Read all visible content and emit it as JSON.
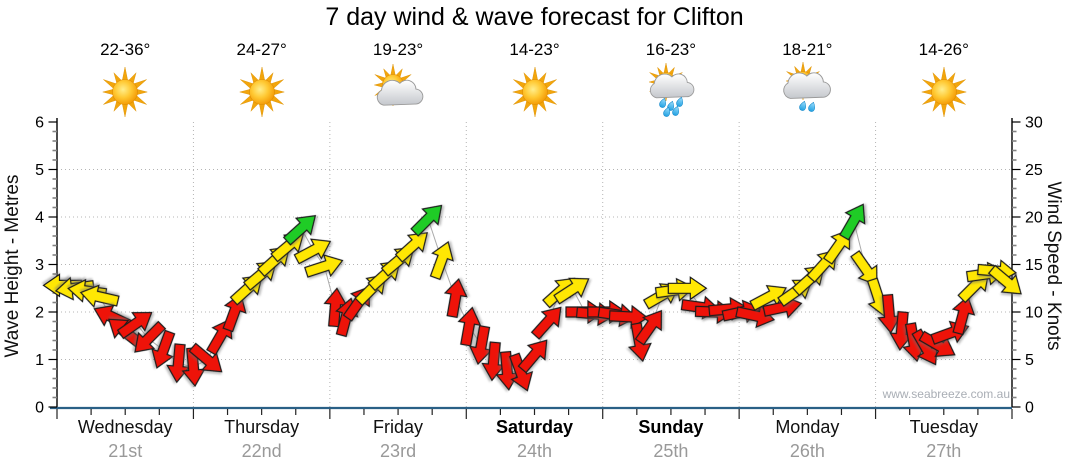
{
  "watermark": "www.seabreeze.com.au",
  "chart_data": {
    "type": "wind-arrow-series",
    "title": "7 day wind & wave forecast for Clifton",
    "days": [
      {
        "name": "Wednesday",
        "date": "21st",
        "temp": "22-36°",
        "icon": "sunny",
        "bold": false
      },
      {
        "name": "Thursday",
        "date": "22nd",
        "temp": "24-27°",
        "icon": "sunny",
        "bold": false
      },
      {
        "name": "Friday",
        "date": "23rd",
        "temp": "19-23°",
        "icon": "partly-cloudy",
        "bold": false
      },
      {
        "name": "Saturday",
        "date": "24th",
        "temp": "14-23°",
        "icon": "sunny",
        "bold": true
      },
      {
        "name": "Sunday",
        "date": "25th",
        "temp": "16-23°",
        "icon": "rain",
        "bold": true
      },
      {
        "name": "Monday",
        "date": "26th",
        "temp": "18-21°",
        "icon": "rain-light",
        "bold": false
      },
      {
        "name": "Tuesday",
        "date": "27th",
        "temp": "14-26°",
        "icon": "sunny",
        "bold": false
      }
    ],
    "left_axis": {
      "label": "Wave Height - Metres",
      "min": 0,
      "max": 6,
      "major_step": 1,
      "minor_step": 0.2,
      "gridlines": [
        1,
        2,
        3,
        4,
        5
      ]
    },
    "right_axis": {
      "label": "Wind Speed - Knots",
      "min": 0,
      "max": 30,
      "major_step": 5,
      "minor_step": 1
    },
    "colors": {
      "red": "#ee1309",
      "yellow": "#ffe703",
      "green": "#1fcc26"
    },
    "points_key": "t = day offset (0=Wed 00:00, 7=end Tue), knots = wind speed on right axis, dir = arrow heading degrees (0=right, 90=down), color = speed band",
    "points": [
      {
        "t": 0.04,
        "knots": 12.8,
        "dir": 180,
        "color": "yellow"
      },
      {
        "t": 0.13,
        "knots": 12.5,
        "dir": 172,
        "color": "yellow"
      },
      {
        "t": 0.22,
        "knots": 12.2,
        "dir": 188,
        "color": "yellow"
      },
      {
        "t": 0.31,
        "knots": 11.6,
        "dir": 193,
        "color": "yellow"
      },
      {
        "t": 0.4,
        "knots": 9.5,
        "dir": 205,
        "color": "red"
      },
      {
        "t": 0.49,
        "knots": 8.0,
        "dir": 218,
        "color": "red"
      },
      {
        "t": 0.58,
        "knots": 8.8,
        "dir": -35,
        "color": "red"
      },
      {
        "t": 0.67,
        "knots": 7.2,
        "dir": 135,
        "color": "red"
      },
      {
        "t": 0.78,
        "knots": 6.0,
        "dir": 110,
        "color": "red"
      },
      {
        "t": 0.89,
        "knots": 4.6,
        "dir": 95,
        "color": "red"
      },
      {
        "t": 1.0,
        "knots": 4.2,
        "dir": 85,
        "color": "red"
      },
      {
        "t": 1.1,
        "knots": 5.0,
        "dir": 40,
        "color": "red"
      },
      {
        "t": 1.2,
        "knots": 7.5,
        "dir": -60,
        "color": "red"
      },
      {
        "t": 1.3,
        "knots": 10.0,
        "dir": -70,
        "color": "red"
      },
      {
        "t": 1.4,
        "knots": 12.5,
        "dir": -42,
        "color": "yellow"
      },
      {
        "t": 1.5,
        "knots": 14.0,
        "dir": -40,
        "color": "yellow"
      },
      {
        "t": 1.6,
        "knots": 15.5,
        "dir": -42,
        "color": "yellow"
      },
      {
        "t": 1.7,
        "knots": 17.0,
        "dir": -40,
        "color": "yellow"
      },
      {
        "t": 1.79,
        "knots": 18.8,
        "dir": -42,
        "color": "green"
      },
      {
        "t": 1.88,
        "knots": 16.5,
        "dir": -28,
        "color": "yellow"
      },
      {
        "t": 1.96,
        "knots": 14.8,
        "dir": -18,
        "color": "yellow"
      },
      {
        "t": 2.04,
        "knots": 10.5,
        "dir": -85,
        "color": "red"
      },
      {
        "t": 2.12,
        "knots": 9.5,
        "dir": -75,
        "color": "red"
      },
      {
        "t": 2.21,
        "knots": 11.0,
        "dir": -55,
        "color": "red"
      },
      {
        "t": 2.31,
        "knots": 12.5,
        "dir": -45,
        "color": "yellow"
      },
      {
        "t": 2.41,
        "knots": 14.0,
        "dir": -42,
        "color": "yellow"
      },
      {
        "t": 2.51,
        "knots": 15.5,
        "dir": -40,
        "color": "yellow"
      },
      {
        "t": 2.61,
        "knots": 17.0,
        "dir": -42,
        "color": "yellow"
      },
      {
        "t": 2.72,
        "knots": 19.8,
        "dir": -45,
        "color": "green"
      },
      {
        "t": 2.82,
        "knots": 15.5,
        "dir": -70,
        "color": "yellow"
      },
      {
        "t": 2.92,
        "knots": 11.5,
        "dir": -80,
        "color": "red"
      },
      {
        "t": 3.02,
        "knots": 8.5,
        "dir": -80,
        "color": "red"
      },
      {
        "t": 3.11,
        "knots": 6.5,
        "dir": 100,
        "color": "red"
      },
      {
        "t": 3.2,
        "knots": 4.8,
        "dir": 95,
        "color": "red"
      },
      {
        "t": 3.3,
        "knots": 3.8,
        "dir": 85,
        "color": "red"
      },
      {
        "t": 3.4,
        "knots": 3.6,
        "dir": 70,
        "color": "red"
      },
      {
        "t": 3.5,
        "knots": 5.5,
        "dir": -50,
        "color": "red"
      },
      {
        "t": 3.6,
        "knots": 9.0,
        "dir": -48,
        "color": "red"
      },
      {
        "t": 3.69,
        "knots": 12.2,
        "dir": -42,
        "color": "yellow"
      },
      {
        "t": 3.78,
        "knots": 12.4,
        "dir": -33,
        "color": "yellow"
      },
      {
        "t": 3.87,
        "knots": 10.0,
        "dir": 0,
        "color": "red"
      },
      {
        "t": 3.95,
        "knots": 9.8,
        "dir": 5,
        "color": "red"
      },
      {
        "t": 4.03,
        "knots": 10.0,
        "dir": 0,
        "color": "red"
      },
      {
        "t": 4.11,
        "knots": 9.7,
        "dir": 8,
        "color": "red"
      },
      {
        "t": 4.19,
        "knots": 9.5,
        "dir": 3,
        "color": "red"
      },
      {
        "t": 4.27,
        "knots": 6.8,
        "dir": 80,
        "color": "red"
      },
      {
        "t": 4.35,
        "knots": 8.5,
        "dir": -55,
        "color": "red"
      },
      {
        "t": 4.44,
        "knots": 11.8,
        "dir": -30,
        "color": "yellow"
      },
      {
        "t": 4.53,
        "knots": 12.3,
        "dir": -8,
        "color": "yellow"
      },
      {
        "t": 4.62,
        "knots": 12.5,
        "dir": 0,
        "color": "yellow"
      },
      {
        "t": 4.72,
        "knots": 10.5,
        "dir": 8,
        "color": "red"
      },
      {
        "t": 4.82,
        "knots": 10.0,
        "dir": 2,
        "color": "red"
      },
      {
        "t": 4.92,
        "knots": 10.3,
        "dir": -5,
        "color": "red"
      },
      {
        "t": 5.02,
        "knots": 10.0,
        "dir": -12,
        "color": "red"
      },
      {
        "t": 5.12,
        "knots": 9.6,
        "dir": 12,
        "color": "red"
      },
      {
        "t": 5.22,
        "knots": 11.6,
        "dir": -28,
        "color": "yellow"
      },
      {
        "t": 5.32,
        "knots": 10.5,
        "dir": -12,
        "color": "red"
      },
      {
        "t": 5.42,
        "knots": 12.2,
        "dir": -35,
        "color": "yellow"
      },
      {
        "t": 5.52,
        "knots": 13.5,
        "dir": -42,
        "color": "yellow"
      },
      {
        "t": 5.62,
        "knots": 15.0,
        "dir": -48,
        "color": "yellow"
      },
      {
        "t": 5.73,
        "knots": 17.0,
        "dir": -55,
        "color": "yellow"
      },
      {
        "t": 5.84,
        "knots": 19.6,
        "dir": -60,
        "color": "green"
      },
      {
        "t": 5.93,
        "knots": 14.5,
        "dir": 55,
        "color": "yellow"
      },
      {
        "t": 6.02,
        "knots": 11.5,
        "dir": 72,
        "color": "yellow"
      },
      {
        "t": 6.1,
        "knots": 9.8,
        "dir": 85,
        "color": "red"
      },
      {
        "t": 6.19,
        "knots": 8.0,
        "dir": 95,
        "color": "red"
      },
      {
        "t": 6.28,
        "knots": 6.8,
        "dir": 80,
        "color": "red"
      },
      {
        "t": 6.37,
        "knots": 6.2,
        "dir": 60,
        "color": "red"
      },
      {
        "t": 6.46,
        "knots": 6.5,
        "dir": 30,
        "color": "red"
      },
      {
        "t": 6.55,
        "knots": 7.8,
        "dir": -20,
        "color": "red"
      },
      {
        "t": 6.64,
        "knots": 9.7,
        "dir": -75,
        "color": "red"
      },
      {
        "t": 6.73,
        "knots": 12.8,
        "dir": -45,
        "color": "yellow"
      },
      {
        "t": 6.81,
        "knots": 14.0,
        "dir": -8,
        "color": "yellow"
      },
      {
        "t": 6.89,
        "knots": 14.3,
        "dir": 5,
        "color": "yellow"
      },
      {
        "t": 6.96,
        "knots": 13.2,
        "dir": 40,
        "color": "yellow"
      }
    ]
  }
}
